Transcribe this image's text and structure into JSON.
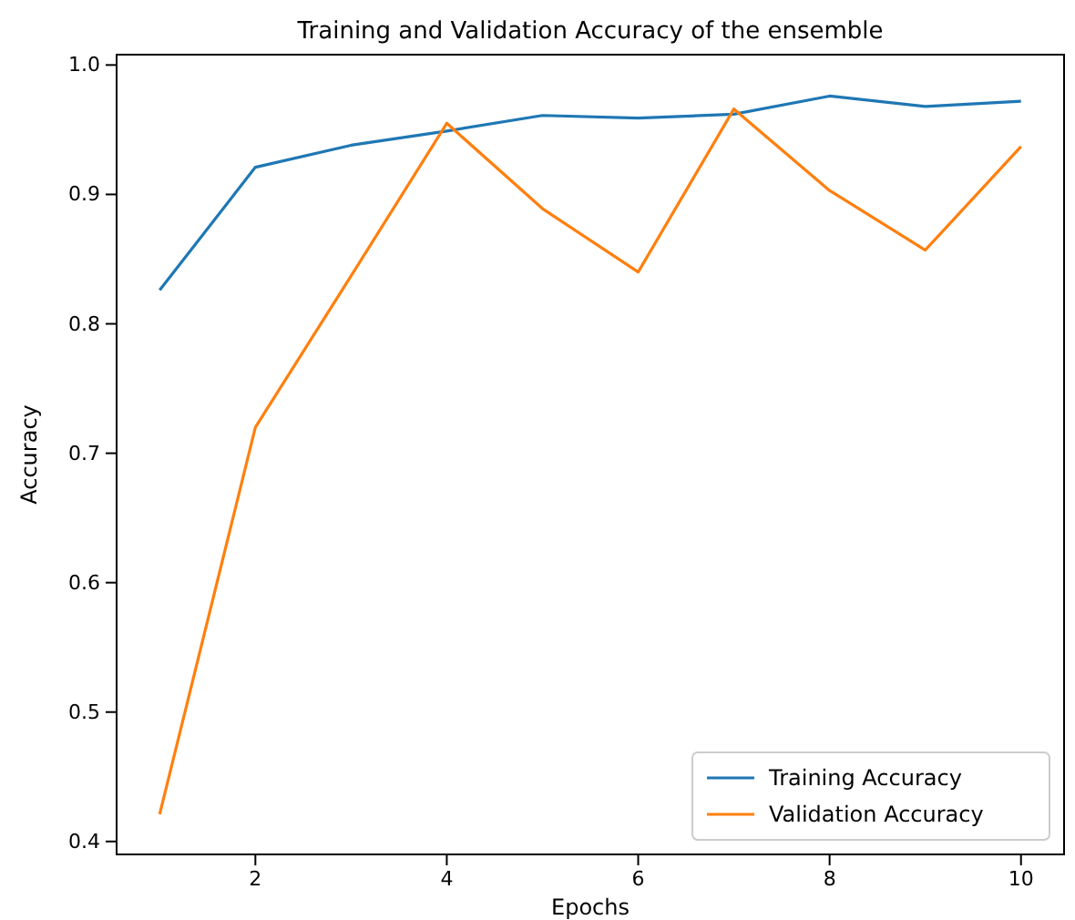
{
  "chart_data": {
    "type": "line",
    "title": "Training and Validation Accuracy of the ensemble",
    "xlabel": "Epochs",
    "ylabel": "Accuracy",
    "x": [
      1,
      2,
      3,
      4,
      5,
      6,
      7,
      8,
      9,
      10
    ],
    "series": [
      {
        "name": "Training Accuracy",
        "color": "#1f77b4",
        "values": [
          0.826,
          0.921,
          0.938,
          0.949,
          0.961,
          0.959,
          0.962,
          0.976,
          0.968,
          0.972
        ]
      },
      {
        "name": "Validation Accuracy",
        "color": "#ff7f0e",
        "values": [
          0.421,
          0.72,
          0.837,
          0.955,
          0.889,
          0.84,
          0.966,
          0.903,
          0.857,
          0.937
        ]
      }
    ],
    "xlim": [
      0.55,
      10.45
    ],
    "xticks": [
      2,
      4,
      6,
      8,
      10
    ],
    "ylim": [
      0.39,
      1.008
    ],
    "yticks": [
      {
        "value": 0.4,
        "label": "0.4"
      },
      {
        "value": 0.5,
        "label": "0.5"
      },
      {
        "value": 0.6,
        "label": "0.6"
      },
      {
        "value": 0.7,
        "label": "0.7"
      },
      {
        "value": 0.8,
        "label": "0.8"
      },
      {
        "value": 0.9,
        "label": "0.9"
      },
      {
        "value": 1.0,
        "label": "1.0"
      }
    ],
    "legend": "bottom right",
    "grid": false,
    "marker": "none",
    "line_style": "solid"
  }
}
